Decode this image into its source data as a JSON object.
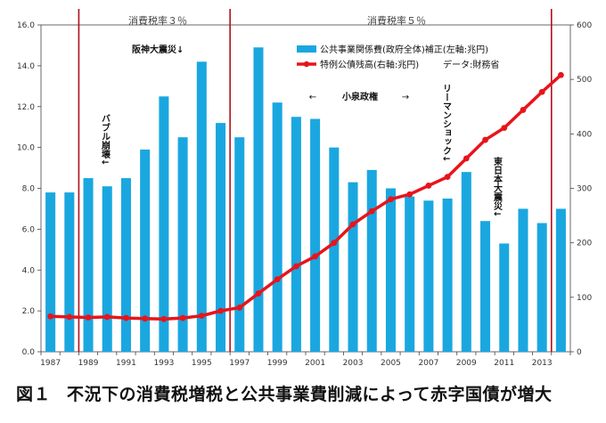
{
  "chart_data": {
    "type": "bar+line",
    "categories": [
      "1987",
      "1988",
      "1989",
      "1990",
      "1991",
      "1992",
      "1993",
      "1994",
      "1995",
      "1996",
      "1997",
      "1998",
      "1999",
      "2000",
      "2001",
      "2002",
      "2003",
      "2004",
      "2005",
      "2006",
      "2007",
      "2008",
      "2009",
      "2010",
      "2011",
      "2012",
      "2013",
      "2014"
    ],
    "x_tick_labels": [
      "1987",
      "1989",
      "1991",
      "1993",
      "1995",
      "1997",
      "1999",
      "2001",
      "2003",
      "2005",
      "2007",
      "2009",
      "2011",
      "2013"
    ],
    "series": [
      {
        "name": "公共事業関係費(政府全体)補正(左軸:兆円)",
        "type": "bar",
        "axis": "left",
        "color": "#1aa7e0",
        "values": [
          7.8,
          7.8,
          8.5,
          8.1,
          8.5,
          9.9,
          12.5,
          10.5,
          14.2,
          11.2,
          10.5,
          14.9,
          12.2,
          11.5,
          11.4,
          10.0,
          8.3,
          8.9,
          8.0,
          7.6,
          7.4,
          7.5,
          8.8,
          6.4,
          5.3,
          7.0,
          6.3,
          7.0
        ]
      },
      {
        "name": "特例公債残高(右軸:兆円)",
        "type": "line",
        "axis": "right",
        "color": "#e8141b",
        "values": [
          65,
          64,
          63,
          64,
          62,
          61,
          60,
          62,
          66,
          75,
          81,
          107,
          133,
          157,
          175,
          200,
          234,
          258,
          280,
          289,
          305,
          321,
          355,
          389,
          411,
          444,
          477,
          508
        ]
      }
    ],
    "y_left": {
      "min": 0,
      "max": 16,
      "step": 2,
      "tick_labels": [
        "0.0",
        "2.0",
        "4.0",
        "6.0",
        "8.0",
        "10.0",
        "12.0",
        "14.0",
        "16.0"
      ]
    },
    "y_right": {
      "min": 0,
      "max": 600,
      "step": 100,
      "tick_labels": [
        "0",
        "100",
        "200",
        "300",
        "400",
        "500",
        "600"
      ]
    },
    "vlines": [
      {
        "year": 1989,
        "color": "#b0101a"
      },
      {
        "year": 1997,
        "color": "#b0101a"
      },
      {
        "year": 2014,
        "color": "#b0101a"
      }
    ],
    "period_labels": [
      "消費税率３％",
      "消費税率５％"
    ],
    "legend": {
      "bar_label": "公共事業関係費(政府全体)補正(左軸:兆円)",
      "line_label": "特例公債残高(右軸:兆円)",
      "source": "データ:財務省"
    },
    "annotations": {
      "hanshin": "阪神大震災↓",
      "koizumi": "小泉政権",
      "bubble": "バブル崩壊↓",
      "lehman": "リーマンショック↓",
      "higashi": "東日本大震災↓"
    },
    "grid": false
  },
  "caption": {
    "number": "図１",
    "text": "不況下の消費税増税と公共事業費削減によって赤字国債が増大"
  }
}
